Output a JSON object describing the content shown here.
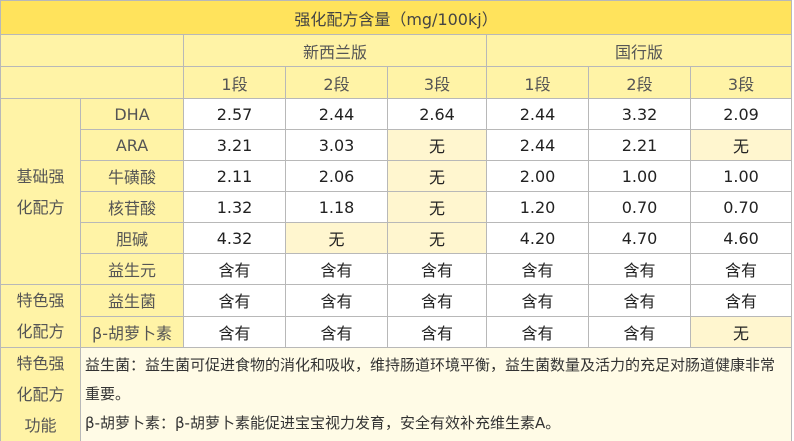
{
  "title": "强化配方含量（mg/100kj）",
  "versions": [
    "新西兰版",
    "国行版"
  ],
  "stages": [
    "1段",
    "2段",
    "3段",
    "1段",
    "2段",
    "3段"
  ],
  "groups": [
    {
      "label": "基础强化配方"
    },
    {
      "label": "特色强化配方"
    }
  ],
  "rows": [
    {
      "name": "DHA",
      "values": [
        "2.57",
        "2.44",
        "2.64",
        "2.44",
        "3.32",
        "2.09"
      ]
    },
    {
      "name": "ARA",
      "values": [
        "3.21",
        "3.03",
        "无",
        "2.44",
        "2.21",
        "无"
      ]
    },
    {
      "name": "牛磺酸",
      "values": [
        "2.11",
        "2.06",
        "无",
        "2.00",
        "1.00",
        "1.00"
      ]
    },
    {
      "name": "核苷酸",
      "values": [
        "1.32",
        "1.18",
        "无",
        "1.20",
        "0.70",
        "0.70"
      ]
    },
    {
      "name": "胆碱",
      "values": [
        "4.32",
        "无",
        "无",
        "4.20",
        "4.70",
        "4.60"
      ]
    },
    {
      "name": "益生元",
      "values": [
        "含有",
        "含有",
        "含有",
        "含有",
        "含有",
        "含有"
      ]
    },
    {
      "name": "益生菌",
      "values": [
        "含有",
        "含有",
        "含有",
        "含有",
        "含有",
        "含有"
      ]
    },
    {
      "name": "β-胡萝卜素",
      "values": [
        "含有",
        "含有",
        "含有",
        "含有",
        "含有",
        "无"
      ]
    }
  ],
  "note": {
    "label": "特色强化配方功能",
    "lines": [
      "益生菌：益生菌可促进食物的消化和吸收，维持肠道环境平衡，益生菌数量及活力的充足对肠道健康非常重要。",
      "β-胡萝卜素：β-胡萝卜素能促进宝宝视力发育，安全有效补充维生素A。"
    ]
  }
}
